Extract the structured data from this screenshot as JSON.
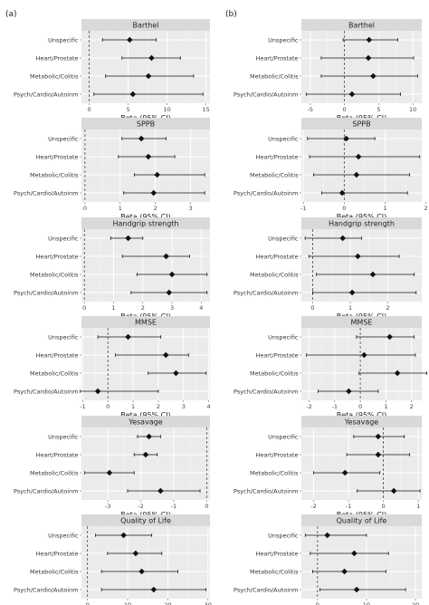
{
  "panels": [
    "(a)",
    "(b)"
  ],
  "categories": [
    "Unspecific",
    "Heart/Prostate",
    "Metabolic/Colitis",
    "Psych/Cardio/Autoinm"
  ],
  "xlabel": "Beta (95% CI)",
  "chart_data": [
    {
      "type": "forest",
      "panel": "(a)",
      "title": "Barthel",
      "xlabel": "Beta (95% CI)",
      "xlim": [
        -1,
        15.5
      ],
      "xticks": [
        0,
        5,
        10,
        15
      ],
      "estimates": [
        5.2,
        8.0,
        7.6,
        5.6
      ],
      "lower": [
        1.7,
        4.2,
        2.1,
        0.6
      ],
      "upper": [
        8.6,
        11.7,
        13.4,
        14.6
      ]
    },
    {
      "type": "forest",
      "panel": "(b)",
      "title": "Barthel",
      "xlabel": "Beta (95% CI)",
      "xlim": [
        -6.3,
        11.3
      ],
      "xticks": [
        -5,
        0,
        5,
        10
      ],
      "estimates": [
        3.6,
        3.5,
        4.2,
        1.1
      ],
      "lower": [
        -0.2,
        -3.4,
        -3.4,
        -5.6
      ],
      "upper": [
        7.8,
        10.1,
        10.7,
        8.2
      ]
    },
    {
      "type": "forest",
      "panel": "(a)",
      "title": "SPPB",
      "xlabel": "Beta (95% CI)",
      "xlim": [
        -0.1,
        3.55
      ],
      "xticks": [
        0,
        1,
        2,
        3
      ],
      "estimates": [
        1.6,
        1.8,
        2.05,
        1.95
      ],
      "lower": [
        1.05,
        0.95,
        1.4,
        1.1
      ],
      "upper": [
        2.3,
        2.55,
        3.4,
        3.4
      ]
    },
    {
      "type": "forest",
      "panel": "(b)",
      "title": "SPPB",
      "xlabel": "Beta (95% CI)",
      "xlim": [
        -1.05,
        1.9
      ],
      "xticks": [
        -1,
        0,
        1,
        2
      ],
      "estimates": [
        0.05,
        0.35,
        0.3,
        -0.05
      ],
      "lower": [
        -0.9,
        -0.85,
        -0.75,
        -0.55
      ],
      "upper": [
        0.75,
        1.85,
        1.6,
        1.55
      ]
    },
    {
      "type": "forest",
      "panel": "(a)",
      "title": "Handgrip strength",
      "xlabel": "Beta (95% CI)",
      "xlim": [
        -0.1,
        4.3
      ],
      "xticks": [
        0,
        1,
        2,
        3,
        4
      ],
      "estimates": [
        1.5,
        2.8,
        3.0,
        2.9
      ],
      "lower": [
        0.9,
        1.3,
        1.8,
        1.6
      ],
      "upper": [
        2.0,
        3.6,
        4.2,
        4.2
      ]
    },
    {
      "type": "forest",
      "panel": "(b)",
      "title": "Handgrip strength",
      "xlabel": "Beta (95% CI)",
      "xlim": [
        -0.3,
        2.9
      ],
      "xticks": [
        0,
        1,
        2
      ],
      "estimates": [
        0.8,
        1.2,
        1.6,
        1.05
      ],
      "lower": [
        -0.2,
        -0.1,
        0.1,
        0.0
      ],
      "upper": [
        1.3,
        2.3,
        2.7,
        2.75
      ]
    },
    {
      "type": "forest",
      "panel": "(a)",
      "title": "MMSE",
      "xlabel": "Beta (95% CI)",
      "xlim": [
        -1.05,
        4.05
      ],
      "xticks": [
        -1,
        0,
        1,
        2,
        3,
        4
      ],
      "estimates": [
        0.8,
        2.3,
        2.7,
        -0.4
      ],
      "lower": [
        -0.4,
        0.3,
        1.6,
        -1.1
      ],
      "upper": [
        2.1,
        3.2,
        3.9,
        2.0
      ]
    },
    {
      "type": "forest",
      "panel": "(b)",
      "title": "MMSE",
      "xlabel": "Beta (95% CI)",
      "xlim": [
        -2.3,
        2.4
      ],
      "xticks": [
        -2,
        -1,
        0,
        1,
        2
      ],
      "estimates": [
        1.15,
        0.15,
        1.45,
        -0.45
      ],
      "lower": [
        -0.15,
        -2.1,
        -0.05,
        -1.65
      ],
      "upper": [
        2.1,
        2.15,
        2.6,
        0.7
      ]
    },
    {
      "type": "forest",
      "panel": "(a)",
      "title": "Yesavage",
      "xlabel": "Beta (95% CI)",
      "xlim": [
        -3.8,
        0.1
      ],
      "xticks": [
        -3,
        -2,
        -1,
        0
      ],
      "estimates": [
        -1.75,
        -1.85,
        -2.95,
        -1.4
      ],
      "lower": [
        -2.1,
        -2.2,
        -3.7,
        -2.4
      ],
      "upper": [
        -1.4,
        -1.5,
        -2.2,
        -0.2
      ]
    },
    {
      "type": "forest",
      "panel": "(b)",
      "title": "Yesavage",
      "xlabel": "Beta (95% CI)",
      "xlim": [
        -2.35,
        1.1
      ],
      "xticks": [
        -2,
        -1,
        0,
        1
      ],
      "estimates": [
        -0.15,
        -0.15,
        -1.1,
        0.3
      ],
      "lower": [
        -0.85,
        -1.05,
        -2.0,
        -0.75
      ],
      "upper": [
        0.6,
        0.75,
        -0.1,
        1.05
      ]
    },
    {
      "type": "forest",
      "panel": "(a)",
      "title": "Quality of Life",
      "xlabel": "Beta (95% CI)",
      "xlim": [
        -1.5,
        30.5
      ],
      "xticks": [
        0,
        10,
        20,
        30
      ],
      "estimates": [
        9.0,
        12.0,
        13.5,
        16.5
      ],
      "lower": [
        2.0,
        5.0,
        3.5,
        3.5
      ],
      "upper": [
        16.0,
        18.5,
        22.5,
        29.5
      ]
    },
    {
      "type": "forest",
      "panel": "(b)",
      "title": "Quality of Life",
      "xlabel": "Beta (95% CI)",
      "xlim": [
        -3.3,
        21.3
      ],
      "xticks": [
        0,
        10,
        20
      ],
      "estimates": [
        2.0,
        7.5,
        5.5,
        8.0
      ],
      "lower": [
        -2.5,
        -1.5,
        -1.0,
        0.5
      ],
      "upper": [
        10.0,
        14.5,
        14.0,
        18.0
      ]
    }
  ]
}
